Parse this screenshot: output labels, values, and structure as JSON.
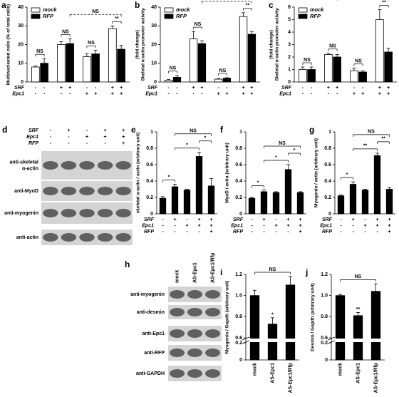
{
  "chart_data": [
    {
      "type": "bar",
      "label": "a",
      "ylabel": [
        "Multinucleated cells (% of total cells)"
      ],
      "ylim": [
        0,
        40
      ],
      "yticks": [
        0,
        10,
        20,
        30,
        40
      ],
      "series": [
        {
          "name": "mock",
          "color": "#ffffff",
          "values": [
            8,
            20,
            13.5,
            28.5
          ],
          "errors": [
            0.5,
            1.5,
            1.5,
            1.5
          ]
        },
        {
          "name": "RFP",
          "color": "#000000",
          "values": [
            10,
            20.5,
            15,
            17.5
          ],
          "errors": [
            2.5,
            2.5,
            2,
            2
          ]
        }
      ],
      "conditions": [
        {
          "name": "SRF",
          "signs": [
            "-",
            "-",
            "+",
            "+",
            "-",
            "-",
            "+",
            "+"
          ]
        },
        {
          "name": "Epc1",
          "signs": [
            "-",
            "-",
            "-",
            "-",
            "+",
            "+",
            "+",
            "+"
          ]
        }
      ],
      "annotations": [
        {
          "text": "NS",
          "bars": [
            0,
            1
          ]
        },
        {
          "text": "NS",
          "bars": [
            2,
            3
          ]
        },
        {
          "text": "NS",
          "bars": [
            4,
            5
          ]
        },
        {
          "text": "**",
          "bars": [
            6,
            7
          ]
        },
        {
          "text": "NS",
          "bars": [
            3,
            7
          ],
          "dashed": true
        }
      ]
    },
    {
      "type": "bar",
      "label": "b",
      "ylabel": [
        "Skeletal α-actin promoter activity",
        "(fold change)"
      ],
      "ylim": [
        0,
        40
      ],
      "yticks": [
        0,
        10,
        20,
        30,
        40
      ],
      "series": [
        {
          "name": "mock",
          "color": "#ffffff",
          "values": [
            1,
            23,
            1.5,
            35
          ],
          "errors": [
            0.3,
            4,
            0.3,
            2
          ]
        },
        {
          "name": "RFP",
          "color": "#000000",
          "values": [
            2.5,
            20.5,
            2,
            25.5
          ],
          "errors": [
            1,
            1.5,
            0.3,
            1.5
          ]
        }
      ],
      "conditions": [
        {
          "name": "SRF",
          "signs": [
            "-",
            "-",
            "+",
            "+",
            "-",
            "-",
            "+",
            "+"
          ]
        },
        {
          "name": "Epc1",
          "signs": [
            "-",
            "-",
            "-",
            "-",
            "+",
            "+",
            "+",
            "+"
          ]
        }
      ],
      "annotations": [
        {
          "text": "NS",
          "bars": [
            0,
            1
          ]
        },
        {
          "text": "NS",
          "bars": [
            2,
            3
          ]
        },
        {
          "text": "NS",
          "bars": [
            4,
            5
          ]
        },
        {
          "text": "**",
          "bars": [
            6,
            7
          ]
        },
        {
          "text": "NS",
          "bars": [
            3,
            7
          ],
          "dashed": true
        }
      ]
    },
    {
      "type": "bar",
      "label": "c",
      "ylabel": [
        "Skeletal α-actin promoter activity",
        "(fold change)"
      ],
      "ylim": [
        0,
        6
      ],
      "yticks": [
        0,
        1,
        2,
        3,
        4,
        5,
        6
      ],
      "series": [
        {
          "name": "mock",
          "color": "#ffffff",
          "values": [
            1,
            2.2,
            0.9,
            5
          ],
          "errors": [
            0.2,
            0.1,
            0.2,
            0.8
          ]
        },
        {
          "name": "RFP",
          "color": "#000000",
          "values": [
            1,
            2,
            0.8,
            2.4
          ],
          "errors": [
            0.2,
            0.2,
            0.1,
            0.3
          ]
        }
      ],
      "conditions": [
        {
          "name": "SRF",
          "signs": [
            "-",
            "-",
            "+",
            "+",
            "-",
            "-",
            "+",
            "+"
          ]
        },
        {
          "name": "Epc1",
          "signs": [
            "-",
            "-",
            "-",
            "-",
            "+",
            "+",
            "+",
            "+"
          ]
        }
      ],
      "annotations": [
        {
          "text": "NS",
          "bars": [
            0,
            1
          ]
        },
        {
          "text": "NS",
          "bars": [
            2,
            3
          ]
        },
        {
          "text": "NS",
          "bars": [
            4,
            5
          ]
        },
        {
          "text": "**",
          "bars": [
            6,
            7
          ]
        },
        {
          "text": "NS",
          "bars": [
            3,
            7
          ],
          "dashed": true
        }
      ]
    },
    {
      "type": "bar",
      "label": "e",
      "ylabel": [
        "skeletal α-actin / actin (arbitrary unit)"
      ],
      "color": "#000000",
      "ylim": [
        0,
        1
      ],
      "yticks": [
        0,
        0.2,
        0.4,
        0.6,
        0.8,
        1
      ],
      "values": [
        0.19,
        0.33,
        0.29,
        0.7,
        0.34
      ],
      "errors": [
        0.02,
        0.03,
        0.01,
        0.05,
        0.09
      ],
      "conditions": [
        {
          "name": "SRF",
          "signs": [
            "-",
            "+",
            "-",
            "+",
            "+"
          ]
        },
        {
          "name": "Epc1",
          "signs": [
            "-",
            "-",
            "+",
            "+",
            "+"
          ]
        },
        {
          "name": "RFP",
          "signs": [
            "-",
            "-",
            "-",
            "-",
            "+"
          ]
        }
      ],
      "annotations": [
        {
          "text": "*",
          "bars": [
            0,
            1
          ]
        },
        {
          "text": "*",
          "bars": [
            1,
            3
          ]
        },
        {
          "text": "*",
          "bars": [
            3,
            4
          ]
        },
        {
          "text": "NS",
          "bars": [
            1,
            4
          ]
        }
      ]
    },
    {
      "type": "bar",
      "label": "f",
      "ylabel": [
        "MyoD / actin (arbitrary unit)"
      ],
      "color": "#000000",
      "ylim": [
        0,
        1
      ],
      "yticks": [
        0,
        0.2,
        0.4,
        0.6,
        0.8,
        1
      ],
      "values": [
        0.19,
        0.27,
        0.26,
        0.54,
        0.26
      ],
      "errors": [
        0.01,
        0.02,
        0.01,
        0.06,
        0.01
      ],
      "conditions": [
        {
          "name": "SRF",
          "signs": [
            "-",
            "+",
            "-",
            "+",
            "+"
          ]
        },
        {
          "name": "Epc1",
          "signs": [
            "-",
            "-",
            "+",
            "+",
            "+"
          ]
        },
        {
          "name": "RFP",
          "signs": [
            "-",
            "-",
            "-",
            "-",
            "+"
          ]
        }
      ],
      "annotations": [
        {
          "text": "*",
          "bars": [
            0,
            1
          ]
        },
        {
          "text": "*",
          "bars": [
            1,
            3
          ]
        },
        {
          "text": "*",
          "bars": [
            3,
            4
          ]
        },
        {
          "text": "NS",
          "bars": [
            1,
            4
          ]
        }
      ]
    },
    {
      "type": "bar",
      "label": "g",
      "ylabel": [
        "Myogenin / actin (arbitrary unit)"
      ],
      "color": "#000000",
      "ylim": [
        0,
        1
      ],
      "yticks": [
        0,
        0.2,
        0.4,
        0.6,
        0.8,
        1
      ],
      "values": [
        0.22,
        0.36,
        0.29,
        0.71,
        0.3
      ],
      "errors": [
        0.01,
        0.03,
        0.01,
        0.03,
        0.02
      ],
      "conditions": [
        {
          "name": "SRF",
          "signs": [
            "-",
            "+",
            "-",
            "+",
            "+"
          ]
        },
        {
          "name": "Epc1",
          "signs": [
            "-",
            "-",
            "+",
            "+",
            "+"
          ]
        },
        {
          "name": "RFP",
          "signs": [
            "-",
            "-",
            "-",
            "-",
            "+"
          ]
        }
      ],
      "annotations": [
        {
          "text": "*",
          "bars": [
            0,
            1
          ]
        },
        {
          "text": "**",
          "bars": [
            1,
            3
          ]
        },
        {
          "text": "**",
          "bars": [
            3,
            4
          ]
        },
        {
          "text": "NS",
          "bars": [
            1,
            4
          ]
        }
      ]
    },
    {
      "type": "bar",
      "label": "i",
      "ylabel": [
        "Myogenin / Gapdh (arbitrary unit)"
      ],
      "color": "#000000",
      "ylim": [
        0,
        1.2
      ],
      "ybreak": [
        0.2,
        0.6
      ],
      "yticks": [
        0,
        0.2,
        0.6,
        0.8,
        {
          "value": 1,
          "label": "1.0"
        },
        1.2
      ],
      "categories": [
        "mock",
        "AS-Epc1",
        "AS-Epc1/Rfp"
      ],
      "values": [
        1,
        0.73,
        1.1
      ],
      "errors": [
        0.05,
        0.06,
        0.08
      ],
      "annotations": [
        {
          "text": "*",
          "bars": [
            1,
            1
          ]
        },
        {
          "text": "NS",
          "bars": [
            0,
            2
          ]
        }
      ]
    },
    {
      "type": "bar",
      "label": "j",
      "ylabel": [
        "Desmin / Gapdh (arbitrary unit)"
      ],
      "color": "#000000",
      "ylim": [
        0,
        1.2
      ],
      "ybreak": [
        0.2,
        0.6
      ],
      "yticks": [
        0,
        0.2,
        0.6,
        0.8,
        {
          "value": 1,
          "label": "1.0"
        },
        1.2
      ],
      "categories": [
        "mock",
        "AS-Epc1",
        "AS-Epc1/Rfp"
      ],
      "values": [
        1,
        0.81,
        1.04
      ],
      "errors": [
        0.01,
        0.03,
        0.07
      ],
      "annotations": [
        {
          "text": "**",
          "bars": [
            1,
            1
          ]
        },
        {
          "text": "NS",
          "bars": [
            0,
            2
          ]
        }
      ]
    }
  ],
  "blots": [
    {
      "label": "d",
      "conditions": [
        {
          "name": "SRF",
          "signs": [
            "-",
            "+",
            "-",
            "+",
            "+"
          ]
        },
        {
          "name": "Epc1",
          "signs": [
            "-",
            "-",
            "+",
            "+",
            "+"
          ]
        },
        {
          "name": "RFP",
          "signs": [
            "-",
            "-",
            "-",
            "-",
            "+"
          ]
        }
      ],
      "rows": [
        [
          "anti-skeletal",
          "α-actin"
        ],
        [
          "anti-MyoD"
        ],
        [
          "anti-myogenin"
        ],
        [
          "anti-actin"
        ]
      ]
    },
    {
      "label": "h",
      "columns": [
        "mock",
        "AS-Epc1",
        "AS-Epc1/Rfp"
      ],
      "rows": [
        [
          "anti-myogenin"
        ],
        [
          "anti-desmin"
        ],
        [
          "anti-Epc1"
        ],
        [
          "anti-RFP"
        ],
        [
          "anti-GAPDH"
        ]
      ]
    }
  ]
}
